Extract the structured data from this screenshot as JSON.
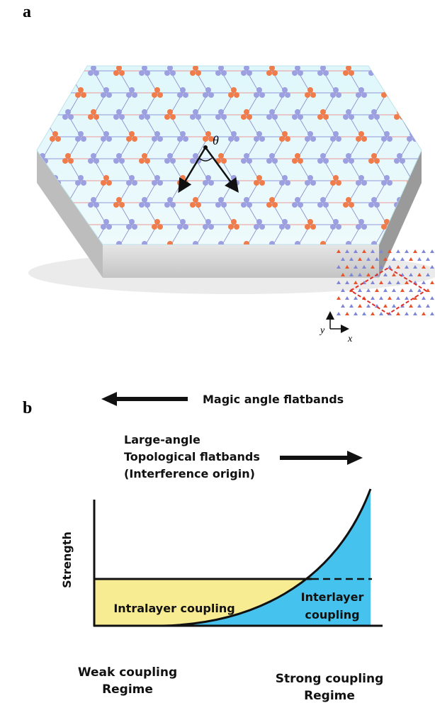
{
  "panel_a": {
    "label": "a",
    "angle_symbol": "θ",
    "axis_y": "y",
    "axis_x": "x"
  },
  "panel_b": {
    "label": "b",
    "left_arrow_label": "Magic angle flatbands",
    "right_arrow_label": [
      "Large-angle",
      "Topological flatbands",
      "(Interference origin)"
    ],
    "y_axis_label": "Strength",
    "yellow_region_label": "Intralayer coupling",
    "blue_region_label": [
      "Interlayer",
      "coupling"
    ],
    "x_left_label": [
      "Weak coupling",
      "Regime"
    ],
    "x_right_label": [
      "Strong coupling",
      "Regime"
    ]
  }
}
